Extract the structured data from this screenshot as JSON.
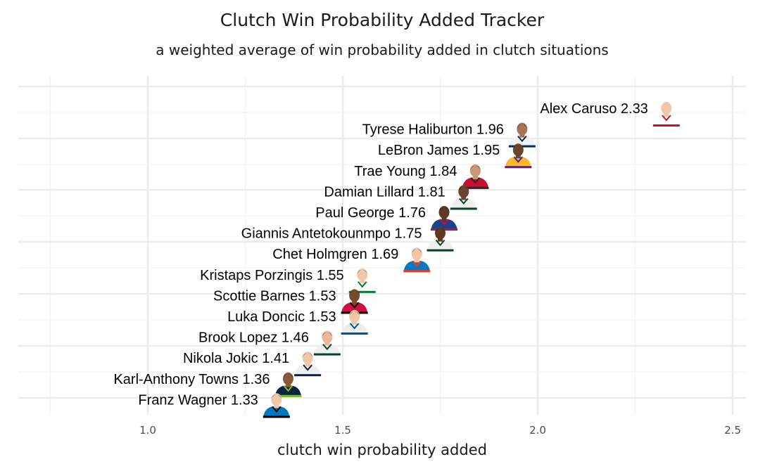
{
  "chart_data": {
    "type": "scatter",
    "title": "Clutch Win Probability Added Tracker",
    "subtitle": "a weighted average of win probability added in clutch situations",
    "xlabel": "clutch win probability added",
    "ylabel": "",
    "xlim": [
      0.75,
      2.55
    ],
    "x_ticks": [
      1.0,
      1.5,
      2.0,
      2.5
    ],
    "x_tick_labels": [
      "1.0",
      "1.5",
      "2.0",
      "2.5"
    ],
    "grid": true,
    "points": [
      {
        "player": "Alex Caruso",
        "label": "Alex Caruso 2.33",
        "x": 2.33,
        "jersey": "#ffffff",
        "trim": "#c8102e",
        "skin": "#f0c8a8",
        "hair": "#d9c8b8"
      },
      {
        "player": "Tyrese Haliburton",
        "label": "Tyrese Haliburton 1.96",
        "x": 1.96,
        "jersey": "#f2f2f2",
        "trim": "#002d62",
        "skin": "#a57456",
        "hair": "#2a1c14"
      },
      {
        "player": "LeBron James",
        "label": "LeBron James 1.95",
        "x": 1.95,
        "jersey": "#fdb927",
        "trim": "#552583",
        "skin": "#6b4430",
        "hair": "#2a1c14"
      },
      {
        "player": "Trae Young",
        "label": "Trae Young 1.84",
        "x": 1.84,
        "jersey": "#c8102e",
        "trim": "#26282a",
        "skin": "#c89878",
        "hair": "#2a1c14"
      },
      {
        "player": "Damian Lillard",
        "label": "Damian Lillard 1.81",
        "x": 1.81,
        "jersey": "#eeeeee",
        "trim": "#00471b",
        "skin": "#6b4430",
        "hair": "#1a120c"
      },
      {
        "player": "Paul George",
        "label": "Paul George 1.76",
        "x": 1.76,
        "jersey": "#1d428a",
        "trim": "#c8102e",
        "skin": "#5e3a26",
        "hair": "#1a120c"
      },
      {
        "player": "Giannis Antetokounmpo",
        "label": "Giannis Antetokounmpo 1.75",
        "x": 1.75,
        "jersey": "#eeeeee",
        "trim": "#00471b",
        "skin": "#5e3a26",
        "hair": "#1a120c"
      },
      {
        "player": "Chet Holmgren",
        "label": "Chet Holmgren 1.69",
        "x": 1.69,
        "jersey": "#007ac1",
        "trim": "#ef3b24",
        "skin": "#f0c8a8",
        "hair": "#3a2a1c"
      },
      {
        "player": "Kristaps Porzingis",
        "label": "Kristaps Porzingis 1.55",
        "x": 1.55,
        "jersey": "#ffffff",
        "trim": "#007a33",
        "skin": "#f0c8a8",
        "hair": "#5a4230"
      },
      {
        "player": "Scottie Barnes",
        "label": "Scottie Barnes 1.53",
        "x": 1.53,
        "jersey": "#ce1141",
        "trim": "#000000",
        "skin": "#7a4a30",
        "hair": "#1a120c"
      },
      {
        "player": "Luka Doncic",
        "label": "Luka Doncic 1.53",
        "x": 1.53,
        "jersey": "#eeeeee",
        "trim": "#00538c",
        "skin": "#f0c8a8",
        "hair": "#5a4230"
      },
      {
        "player": "Brook Lopez",
        "label": "Brook Lopez 1.46",
        "x": 1.46,
        "jersey": "#eeeeee",
        "trim": "#00471b",
        "skin": "#e8b898",
        "hair": "#3a2a1c"
      },
      {
        "player": "Nikola Jokic",
        "label": "Nikola Jokic 1.41",
        "x": 1.41,
        "jersey": "#eeeeee",
        "trim": "#0e2240",
        "skin": "#f0c8a8",
        "hair": "#5a4230"
      },
      {
        "player": "Karl-Anthony Towns",
        "label": "Karl-Anthony Towns 1.36",
        "x": 1.36,
        "jersey": "#0c2340",
        "trim": "#78be20",
        "skin": "#8a5a3c",
        "hair": "#1a120c"
      },
      {
        "player": "Franz Wagner",
        "label": "Franz Wagner 1.33",
        "x": 1.33,
        "jersey": "#0077c0",
        "trim": "#000000",
        "skin": "#f0c8a8",
        "hair": "#5a4230"
      }
    ]
  }
}
